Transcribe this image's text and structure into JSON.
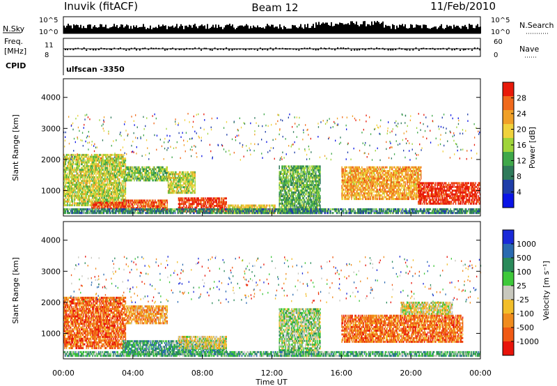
{
  "header": {
    "station": "Inuvik (fitACF)",
    "beam": "Beam 12",
    "date": "11/Feb/2010"
  },
  "strips": {
    "nsky_label": "N.Sky",
    "nsearch_label": "N.Search",
    "noise_ticks": [
      "10^5",
      "10^0"
    ],
    "freq_label_1": "Freq.",
    "freq_label_2": "[MHz]",
    "freq_ticks": [
      "11",
      "8"
    ],
    "nave_label": "Nave",
    "nave_ticks": [
      "60",
      "0"
    ],
    "cpid_label": "CPID",
    "cpid_value": "ulfscan -3350"
  },
  "colors": {
    "power_scale": [
      "#0a14e6",
      "#1f3ea8",
      "#2f7a5a",
      "#3fa84a",
      "#9fd43a",
      "#f0d23c",
      "#f0a028",
      "#f06a1c",
      "#e81a0a"
    ],
    "velocity_scale": [
      "#e8140a",
      "#f05a14",
      "#f08c1e",
      "#f2be2a",
      "#c8c8be",
      "#3ec83a",
      "#2a8a5a",
      "#2a6ab0",
      "#1a2ad8"
    ]
  },
  "chart_data": [
    {
      "type": "heatmap",
      "name": "power",
      "ylabel": "Slant Range [km]",
      "ylim": [
        180,
        4600
      ],
      "y_ticks": [
        1000,
        2000,
        3000,
        4000
      ],
      "xlim": [
        0,
        24
      ],
      "colorbar": {
        "label": "Power [dB]",
        "ticks": [
          "4",
          "8",
          "12",
          "16",
          "20",
          "24",
          "28"
        ],
        "range": [
          0,
          32
        ]
      },
      "echo_regions": [
        {
          "t0": 0.0,
          "t1": 3.6,
          "r0": 500,
          "r1": 2200,
          "level": 0.55
        },
        {
          "t0": 1.6,
          "t1": 3.6,
          "r0": 400,
          "r1": 650,
          "level": 0.9
        },
        {
          "t0": 3.4,
          "t1": 6.0,
          "r0": 350,
          "r1": 700,
          "level": 0.85
        },
        {
          "t0": 3.6,
          "t1": 6.0,
          "r0": 1300,
          "r1": 1800,
          "level": 0.45
        },
        {
          "t0": 6.0,
          "t1": 7.6,
          "r0": 900,
          "r1": 1600,
          "level": 0.55
        },
        {
          "t0": 6.6,
          "t1": 9.4,
          "r0": 300,
          "r1": 750,
          "level": 0.93
        },
        {
          "t0": 9.4,
          "t1": 12.2,
          "r0": 250,
          "r1": 550,
          "level": 0.6
        },
        {
          "t0": 12.4,
          "t1": 14.8,
          "r0": 250,
          "r1": 1800,
          "level": 0.4
        },
        {
          "t0": 16.0,
          "t1": 20.6,
          "r0": 700,
          "r1": 1800,
          "level": 0.72
        },
        {
          "t0": 20.4,
          "t1": 24.0,
          "r0": 550,
          "r1": 1250,
          "level": 0.95
        },
        {
          "t0": 0.0,
          "t1": 24.0,
          "r0": 250,
          "r1": 450,
          "level": 0.3
        }
      ]
    },
    {
      "type": "heatmap",
      "name": "velocity",
      "ylabel": "Slant Range [km]",
      "xlabel": "Time UT",
      "ylim": [
        180,
        4600
      ],
      "y_ticks": [
        1000,
        2000,
        3000,
        4000
      ],
      "xlim": [
        0,
        24
      ],
      "x_ticks": [
        "00:00",
        "04:00",
        "08:00",
        "12:00",
        "16:00",
        "20:00",
        "00:00"
      ],
      "x_tick_hours": [
        0,
        4,
        8,
        12,
        16,
        20,
        24
      ],
      "colorbar": {
        "label": "Velocity [m s⁻¹]",
        "ticks": [
          "1000",
          "500",
          "100",
          "25",
          "-25",
          "-100",
          "-500",
          "-1000"
        ]
      },
      "echo_regions": [
        {
          "t0": 0.0,
          "t1": 3.6,
          "r0": 500,
          "r1": 2200,
          "level": 0.2
        },
        {
          "t0": 3.6,
          "t1": 6.0,
          "r0": 1300,
          "r1": 1900,
          "level": 0.3
        },
        {
          "t0": 3.4,
          "t1": 9.4,
          "r0": 300,
          "r1": 750,
          "level": 0.7
        },
        {
          "t0": 6.6,
          "t1": 9.4,
          "r0": 500,
          "r1": 900,
          "level": 0.45
        },
        {
          "t0": 12.4,
          "t1": 14.8,
          "r0": 250,
          "r1": 1800,
          "level": 0.55
        },
        {
          "t0": 16.0,
          "t1": 23.0,
          "r0": 700,
          "r1": 1600,
          "level": 0.22
        },
        {
          "t0": 19.4,
          "t1": 22.4,
          "r0": 1600,
          "r1": 2000,
          "level": 0.45
        },
        {
          "t0": 0.0,
          "t1": 24.0,
          "r0": 250,
          "r1": 450,
          "level": 0.65
        }
      ]
    }
  ]
}
